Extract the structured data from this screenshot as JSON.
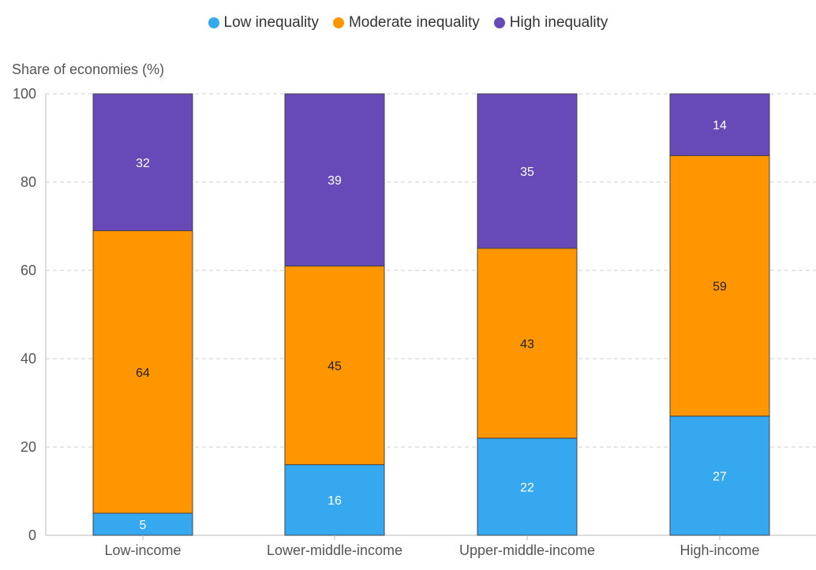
{
  "chart_data": {
    "type": "bar",
    "stacked": true,
    "title": "",
    "xlabel": "",
    "ylabel": "Share of economies (%)",
    "ylim": [
      0,
      100
    ],
    "yticks": [
      0,
      20,
      40,
      60,
      80,
      100
    ],
    "grid": true,
    "legend_position": "top-center",
    "categories": [
      "Low-income",
      "Lower-middle-income",
      "Upper-middle-income",
      "High-income"
    ],
    "series": [
      {
        "name": "Low inequality",
        "color": "#35a8f0",
        "values": [
          5,
          16,
          22,
          27
        ]
      },
      {
        "name": "Moderate inequality",
        "color": "#ff9600",
        "values": [
          64,
          45,
          43,
          59
        ]
      },
      {
        "name": "High inequality",
        "color": "#674ab8",
        "values": [
          32,
          39,
          35,
          14
        ]
      }
    ]
  }
}
